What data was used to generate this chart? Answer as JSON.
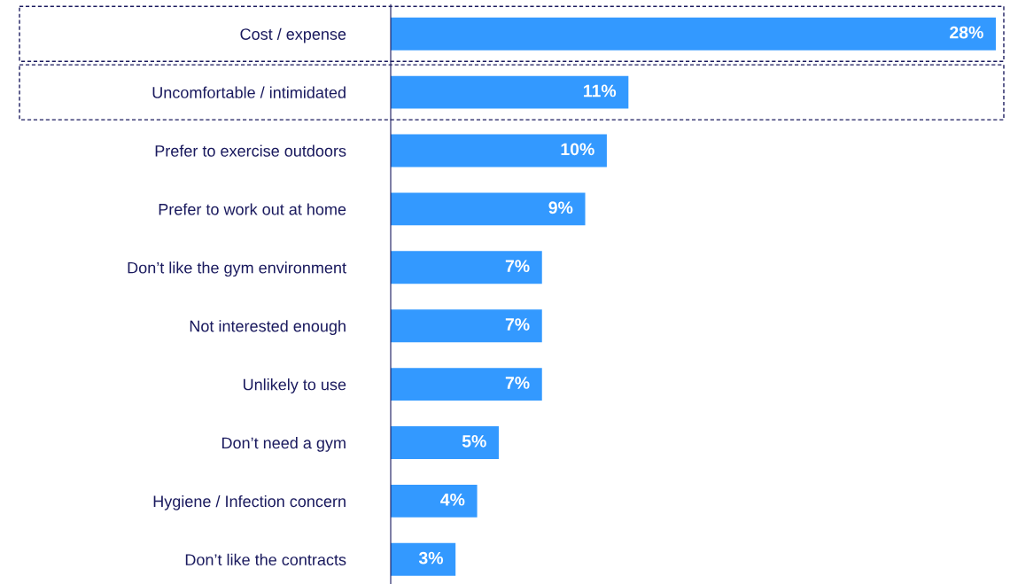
{
  "chart_data": {
    "type": "bar",
    "orientation": "horizontal",
    "categories": [
      "Cost / expense",
      "Uncomfortable / intimidated",
      "Prefer to exercise outdoors",
      "Prefer to work out at home",
      "Don’t like the gym environment",
      "Not interested enough",
      "Unlikely to use",
      "Don’t need a gym",
      "Hygiene / Infection concern",
      "Don’t like the contracts"
    ],
    "values": [
      28,
      11,
      10,
      9,
      7,
      7,
      7,
      5,
      4,
      3
    ],
    "value_labels": [
      "28%",
      "11%",
      "10%",
      "9%",
      "7%",
      "7%",
      "7%",
      "5%",
      "4%",
      "3%"
    ],
    "color": "#3399ff",
    "grid": false,
    "legend": false
  }
}
